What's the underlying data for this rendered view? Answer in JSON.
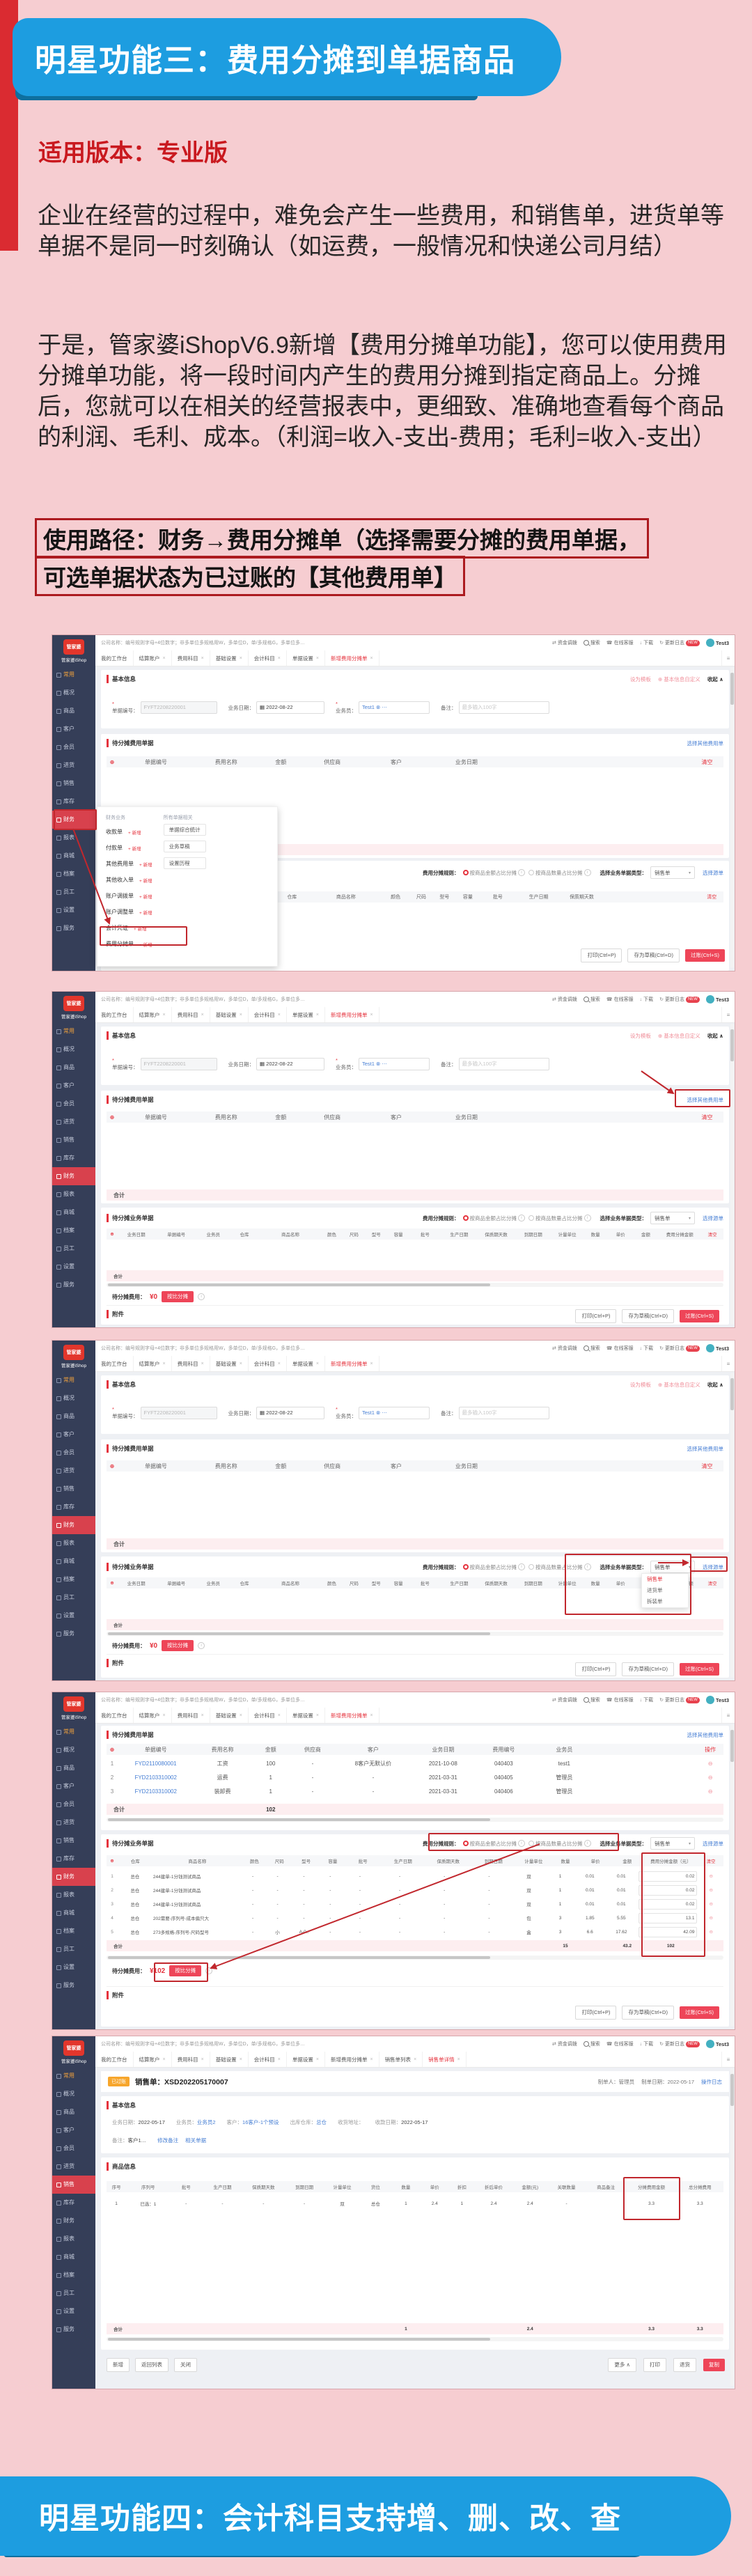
{
  "page": {
    "top_banner": "明星功能三：费用分摊到单据商品",
    "version_label": "适用版本：专业版",
    "paragraph1": "企业在经营的过程中，难免会产生一些费用，和销售单，进货单等单据不是同一时刻确认（如运费，一般情况和快递公司月结）",
    "paragraph2": "于是，管家婆iShopV6.9新增【费用分摊单功能】，您可以使用费用分摊单功能，将一段时间内产生的费用分摊到指定商品上。分摊后，您就可以在相关的经营报表中，更细致、准确地查看每个商品的利润、毛利、成本。（利润=收入-支出-费用；毛利=收入-支出）",
    "path_line1": "使用路径：财务→费用分摊单（选择需要分摊的费用单据，",
    "path_line2": "可选单据状态为已过账的【其他费用单】",
    "bottom_banner": "明星功能四：会计科目支持增、删、改、查"
  },
  "colors": {
    "banner_blue": "#1d9de0",
    "banner_shadow": "#0e6f9e",
    "title_red": "#c9191f",
    "ui_red": "#e5333d",
    "link_blue": "#477fd4",
    "annotation_red": "#c1272d",
    "sidebar_bg": "#353e58",
    "pink_bg": "#f6cdd1"
  },
  "chrome": {
    "logo": "管家婆",
    "logo_sub": "管家婆iShop",
    "company": "公司名称：编号规则字母+4位数字；非多单位多规格用W，多单位D，单/多规格G，多单位多…",
    "topbar_items": [
      {
        "name": "funds-transfer",
        "icon": "⇄",
        "label": "资金调拨"
      },
      {
        "name": "search",
        "icon": "",
        "mag": true,
        "label": "搜索"
      },
      {
        "name": "online-service",
        "icon": "☎",
        "label": "在线客服"
      },
      {
        "name": "download",
        "icon": "↓",
        "label": "下载"
      },
      {
        "name": "changelog",
        "icon": "↻",
        "label": "更新日志",
        "badge": "NEW"
      }
    ],
    "user": "Test3",
    "sidebar": [
      "常用",
      "概况",
      "商品",
      "客户",
      "会员",
      "进货",
      "销售",
      "库存",
      "财务",
      "报表",
      "商城",
      "档案",
      "员工",
      "设置",
      "服务"
    ],
    "tabs": [
      "我的工作台",
      "结算账户",
      "费用科目",
      "基础设置",
      "会计科目",
      "单据设置",
      "新增费用分摊单"
    ],
    "tabs_extra": [
      "销售单列表",
      "销售单详情"
    ]
  },
  "labels": {
    "basic_info": "基本信息",
    "save_template": "设为模板",
    "custom_fields": "基本信息自定义",
    "collapse": "收起",
    "doc_no_label": "单据编号：",
    "doc_no": "FYFT2208220001",
    "biz_date_label": "业务日期：",
    "biz_date": "2022-08-22",
    "salesman_label": "业务员：",
    "salesman": "Test1",
    "remark_label": "备注：",
    "remark_placeholder": "最多输入100字",
    "fee_panel": "待分摊费用单据",
    "choose_fee": "选择其他费用单",
    "biz_panel": "待分摊业务单据",
    "rule_label": "费用分摊规则：",
    "rule_amount": "按商品金额占比分摊",
    "rule_qty": "按商品数量占比分摊",
    "doctype_label": "选择业务单据类型：",
    "doctype_value": "销售单",
    "choose_source": "选择源单",
    "total": "合计",
    "clear": "清空",
    "operation": "操作",
    "fee_due_label": "待分摊费用：",
    "fee_due_zero": "¥0",
    "fee_due_102": "¥102",
    "allocate_btn": "按比分摊",
    "attachment": "附件",
    "print_btn": "打印(Ctrl+P)",
    "draft_btn": "存为草稿(Ctrl+D)",
    "post_btn": "过账(Ctrl+S)"
  },
  "menu": {
    "col1_title": "财务业务",
    "col1": [
      "收款单",
      "付款单",
      "其他费用单",
      "其他收入单",
      "账户调拨单",
      "账户调整单",
      "会计凭证",
      "费用分摊单"
    ],
    "add_tag": "+ 新增",
    "col2_title": "所有单据相关",
    "col2": [
      "单据综合统计",
      "业务草稿",
      "设置历程"
    ]
  },
  "tables": {
    "fee_cols": [
      "单据编号",
      "费用名称",
      "金额",
      "供应商",
      "客户",
      "业务日期"
    ],
    "fee_cols_shot4": [
      "单据编号",
      "费用名称",
      "金额",
      "供应商",
      "客户",
      "业务日期",
      "费用编号",
      "业务员"
    ],
    "biz_cols_short": [
      "仓库",
      "商品名称",
      "颜色",
      "尺码",
      "型号",
      "容量",
      "批号",
      "生产日期",
      "保质期天数"
    ],
    "biz_cols_full": [
      "业务日期",
      "单据编号",
      "业务员",
      "仓库",
      "商品名称",
      "颜色",
      "尺码",
      "型号",
      "容量",
      "批号",
      "生产日期",
      "保质期天数",
      "到期日期",
      "计量单位",
      "数量",
      "单价",
      "金额",
      "费用分摊金额"
    ],
    "biz_cols_shot4": [
      "仓库",
      "商品名称",
      "颜色",
      "尺码",
      "型号",
      "容量",
      "批号",
      "生产日期",
      "保质期天数",
      "到期日期",
      "计量单位",
      "数量",
      "单价",
      "金额",
      "费用分摊金额（元）"
    ]
  },
  "shot3": {
    "dropdown": [
      "销售单",
      "进货单",
      "拆装单"
    ]
  },
  "shot4": {
    "fee_rows": [
      [
        "1",
        "FYD2110080001",
        "工资",
        "100",
        "-",
        "8客户无默认价",
        "2021-10-08",
        "040403",
        "test1"
      ],
      [
        "2",
        "FYD2103310002",
        "运费",
        "1",
        "-",
        "-",
        "2021-03-31",
        "040405",
        "管理员"
      ],
      [
        "3",
        "FYD2103310002",
        "装卸费",
        "1",
        "-",
        "-",
        "2021-03-31",
        "040406",
        "管理员"
      ]
    ],
    "fee_total": "102",
    "biz_rows": [
      [
        "1",
        "总仓",
        "244建单-1分钱测试商品",
        "-",
        "-",
        "-",
        "-",
        "-",
        "-",
        "-",
        "-",
        "双",
        "1",
        "0.01",
        "0.01",
        "0.02"
      ],
      [
        "2",
        "总仓",
        "244建单-1分钱测试商品",
        "-",
        "-",
        "-",
        "-",
        "-",
        "-",
        "-",
        "-",
        "双",
        "1",
        "0.01",
        "0.01",
        "0.02"
      ],
      [
        "3",
        "总仓",
        "244建单-1分钱测试商品",
        "-",
        "-",
        "-",
        "-",
        "-",
        "-",
        "-",
        "-",
        "双",
        "1",
        "0.01",
        "0.01",
        "0.02"
      ],
      [
        "4",
        "总仓",
        "202需要-序列号-成本偏只大",
        "-",
        "-",
        "-",
        "-",
        "-",
        "-",
        "-",
        "-",
        "包",
        "3",
        "1.85",
        "5.55",
        "13.1"
      ],
      [
        "5",
        "总仓",
        "273多规格-序列号-尺码型号",
        "-",
        "小",
        "A-0..",
        "-",
        "-",
        "-",
        "-",
        "-",
        "盒",
        "3",
        "6.6",
        "17.62",
        "42.09"
      ]
    ],
    "biz_totals": {
      "qty": "15",
      "amount": "43.2",
      "alloc": "102"
    }
  },
  "shot5": {
    "badge": "已过账",
    "title": "销售单：XSD202205170007",
    "maker_label": "制单人：",
    "maker": "管理员",
    "made_date_label": "制单日期：",
    "made_date": "2022-05-17",
    "log_link": "操作日志",
    "fields": [
      [
        "业务日期：",
        "2022-05-17",
        ""
      ],
      [
        "业务员：",
        "业务员2",
        "blue"
      ],
      [
        "客户：",
        "16客户-1个预设",
        "blue"
      ],
      [
        "出库仓库：",
        "总仓",
        "blue"
      ],
      [
        "收货地址：",
        "",
        ""
      ],
      [
        "收款日期：",
        "2022-05-17",
        ""
      ]
    ],
    "remark_label": "备注：",
    "remark": "客户1…",
    "remark_links": [
      "修改备注",
      "相关单据"
    ],
    "goods_panel": "商品信息",
    "cols": [
      "序号",
      "序列号",
      "批号",
      "生产日期",
      "保质期天数",
      "到期日期",
      "计量单位",
      "货位",
      "数量",
      "单价",
      "折扣",
      "折后单价",
      "金额(元)",
      "关联数量",
      "商品备注",
      "分摊费用金额",
      "总分摊费用"
    ],
    "row": [
      "1",
      "已选：1",
      "-",
      "-",
      "-",
      "-",
      "双",
      "总仓",
      "1",
      "2.4",
      "1",
      "2.4",
      "2.4",
      "-",
      "",
      "3.3",
      "3.3"
    ],
    "totals": {
      "qty": "1",
      "amount": "2.4",
      "alloc": "3.3",
      "total_alloc": "3.3"
    },
    "toolbar_left": [
      "新增",
      "返回列表",
      "关闭"
    ],
    "more_btn": "更多",
    "print2": "打印",
    "return_btn": "退货",
    "copy_btn": "复制"
  }
}
